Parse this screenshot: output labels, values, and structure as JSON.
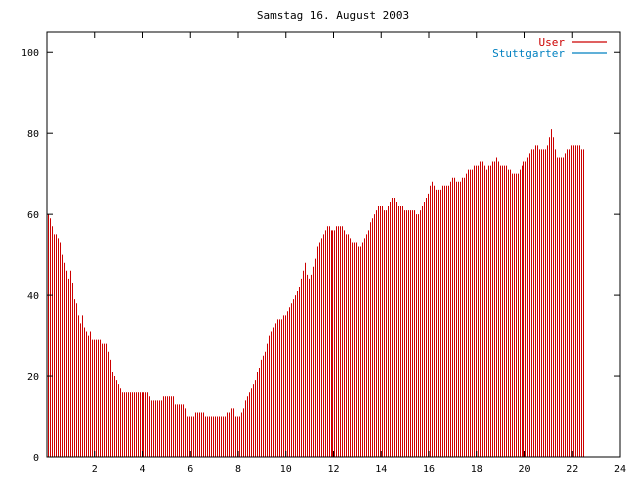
{
  "chart_data": {
    "type": "bar",
    "title": "Samstag 16. August 2003",
    "xlabel": "",
    "ylabel": "",
    "xlim": [
      0,
      24
    ],
    "ylim": [
      0,
      105
    ],
    "x_ticks": [
      "2",
      "4",
      "6",
      "8",
      "10",
      "12",
      "14",
      "16",
      "18",
      "20",
      "22",
      "24"
    ],
    "y_ticks": [
      "0",
      "20",
      "40",
      "60",
      "80",
      "100"
    ],
    "grid": false,
    "legend_position": "top-right",
    "series": [
      {
        "name": "User",
        "color": "#cc0000",
        "x_start": 0,
        "x_step": 0.08333,
        "values": [
          60,
          59,
          57,
          55,
          55,
          54,
          53,
          50,
          48,
          46,
          44,
          46,
          43,
          39,
          38,
          35,
          33,
          35,
          32,
          31,
          30,
          31,
          29,
          29,
          29,
          29,
          29,
          28,
          28,
          28,
          26,
          24,
          21,
          20,
          19,
          18,
          17,
          16,
          16,
          16,
          16,
          16,
          16,
          16,
          16,
          16,
          16,
          16,
          16,
          16,
          16,
          15,
          14,
          14,
          14,
          14,
          14,
          14,
          15,
          15,
          15,
          15,
          15,
          15,
          13,
          13,
          13,
          13,
          13,
          12,
          10,
          10,
          10,
          10,
          11,
          11,
          11,
          11,
          11,
          10,
          10,
          10,
          10,
          10,
          10,
          10,
          10,
          10,
          10,
          10,
          11,
          11,
          12,
          12,
          10,
          10,
          10,
          11,
          12,
          14,
          15,
          16,
          17,
          18,
          19,
          21,
          22,
          24,
          25,
          26,
          28,
          30,
          31,
          32,
          33,
          34,
          34,
          34,
          35,
          35,
          36,
          37,
          38,
          39,
          40,
          41,
          42,
          44,
          46,
          48,
          45,
          44,
          45,
          47,
          49,
          52,
          53,
          54,
          55,
          56,
          57,
          57,
          56,
          56,
          56,
          57,
          57,
          57,
          57,
          56,
          55,
          55,
          54,
          53,
          53,
          53,
          52,
          52,
          53,
          54,
          55,
          56,
          58,
          59,
          60,
          61,
          62,
          62,
          62,
          61,
          61,
          62,
          63,
          64,
          64,
          63,
          62,
          62,
          62,
          61,
          61,
          61,
          61,
          61,
          61,
          60,
          60,
          61,
          62,
          63,
          64,
          65,
          67,
          68,
          67,
          66,
          66,
          66,
          67,
          67,
          67,
          67,
          68,
          69,
          69,
          68,
          68,
          68,
          69,
          69,
          70,
          71,
          71,
          71,
          72,
          72,
          72,
          73,
          73,
          72,
          71,
          72,
          72,
          73,
          73,
          74,
          73,
          72,
          72,
          72,
          72,
          71,
          71,
          70,
          70,
          70,
          70,
          71,
          72,
          73,
          73,
          74,
          75,
          76,
          76,
          77,
          77,
          76,
          76,
          76,
          76,
          77,
          79,
          81,
          79,
          76,
          74,
          74,
          74,
          74,
          75,
          76,
          76,
          77,
          77,
          77,
          77,
          77,
          76,
          76
        ]
      },
      {
        "name": "Stuttgarter",
        "color": "#0080c0",
        "x_start": 0,
        "x_step": 0.08333,
        "values": []
      }
    ]
  }
}
